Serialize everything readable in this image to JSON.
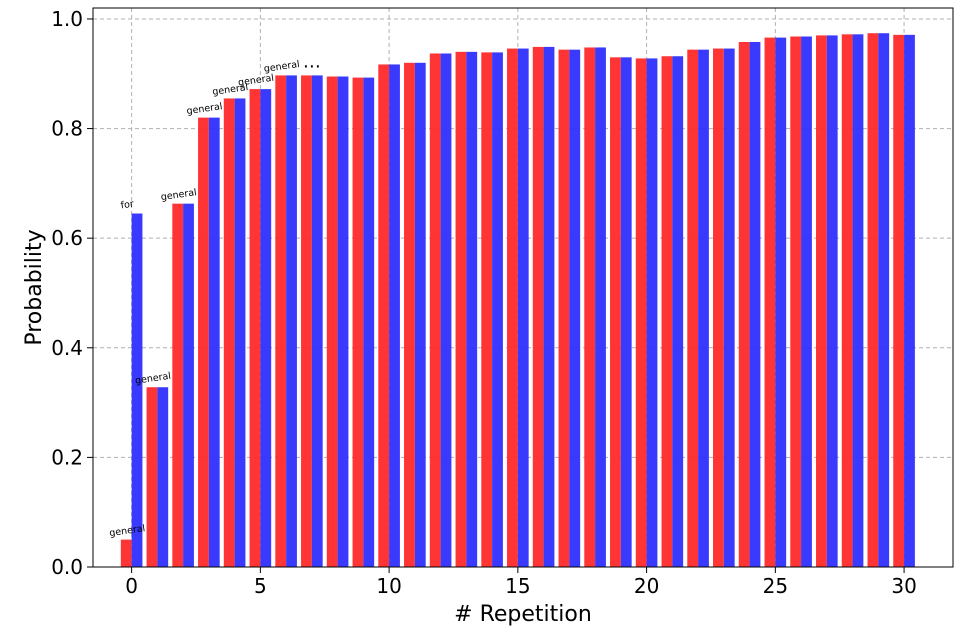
{
  "chart_data": {
    "type": "bar",
    "xlabel": "# Repetition",
    "ylabel": "Probability",
    "xlim": [
      -1.5,
      31.9
    ],
    "ylim": [
      0.0,
      1.0
    ],
    "grid": true,
    "x_ticks": [
      0,
      5,
      10,
      15,
      20,
      25,
      30
    ],
    "y_ticks": [
      0.0,
      0.2,
      0.4,
      0.6,
      0.8,
      1.0
    ],
    "x_tick_labels": [
      "0",
      "5",
      "10",
      "15",
      "20",
      "25",
      "30"
    ],
    "y_tick_labels": [
      "0.0",
      "0.2",
      "0.4",
      "0.6",
      "0.8",
      "1.0"
    ],
    "colors": {
      "red": "#ff2a2a",
      "blue": "#2f2fff"
    },
    "x": [
      0,
      1,
      2,
      3,
      4,
      5,
      6,
      7,
      8,
      9,
      10,
      11,
      12,
      13,
      14,
      15,
      16,
      17,
      18,
      19,
      20,
      21,
      22,
      23,
      24,
      25,
      26,
      27,
      28,
      29,
      30
    ],
    "series": [
      {
        "color": "#ff2a2a",
        "values": [
          0.05,
          0.328,
          0.663,
          0.82,
          0.855,
          0.872,
          0.897,
          0.897,
          0.895,
          0.893,
          0.917,
          0.92,
          0.937,
          0.94,
          0.939,
          0.946,
          0.949,
          0.944,
          0.948,
          0.93,
          0.928,
          0.932,
          0.944,
          0.946,
          0.958,
          0.966,
          0.968,
          0.97,
          0.972,
          0.974,
          0.971
        ]
      },
      {
        "color": "#2f2fff",
        "values": [
          0.645,
          0.328,
          0.663,
          0.82,
          0.855,
          0.872,
          0.897,
          0.897,
          0.895,
          0.893,
          0.917,
          0.92,
          0.937,
          0.94,
          0.939,
          0.946,
          0.949,
          0.944,
          0.948,
          0.93,
          0.928,
          0.932,
          0.944,
          0.946,
          0.958,
          0.966,
          0.968,
          0.97,
          0.972,
          0.974,
          0.971
        ]
      }
    ],
    "annotations": [
      {
        "text": "general",
        "x": 0,
        "y": 0.05
      },
      {
        "text": "for",
        "x": 0,
        "y": 0.645
      },
      {
        "text": "general",
        "x": 1,
        "y": 0.328
      },
      {
        "text": "general",
        "x": 2,
        "y": 0.663
      },
      {
        "text": "general",
        "x": 3,
        "y": 0.82
      },
      {
        "text": "general",
        "x": 4,
        "y": 0.855
      },
      {
        "text": "general",
        "x": 5,
        "y": 0.872
      },
      {
        "text": "general",
        "x": 6,
        "y": 0.897
      },
      {
        "text": "…",
        "x": 7,
        "y": 0.897
      }
    ]
  }
}
